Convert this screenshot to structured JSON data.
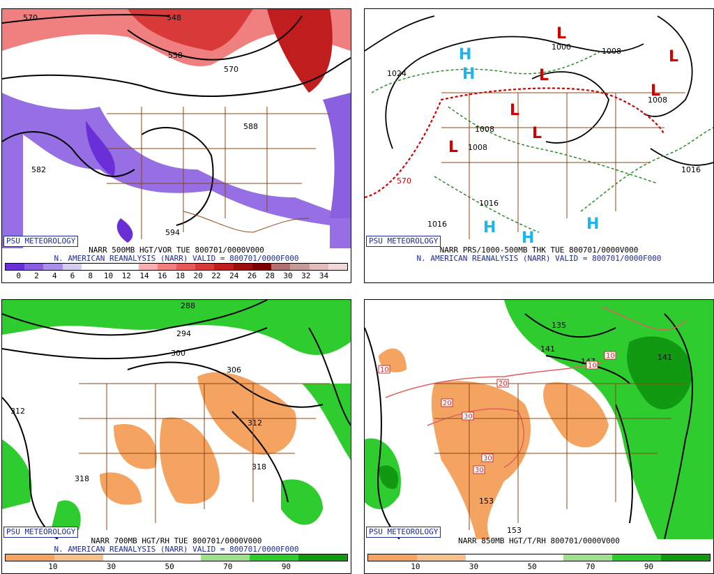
{
  "credit": "PSU METEOROLOGY",
  "panels": [
    {
      "title": "NARR 500MB HGT/VOR TUE 800701/0000V000",
      "subtitle": "N. AMERICAN REANALYSIS (NARR) VALID = 800701/0000F000",
      "legend_ticks": [
        "0",
        "2",
        "4",
        "6",
        "8",
        "10",
        "12",
        "14",
        "16",
        "18",
        "20",
        "22",
        "24",
        "26",
        "28",
        "30",
        "32",
        "34"
      ],
      "legend_colors": [
        "#6a2fd6",
        "#8a5fe0",
        "#a890e8",
        "#d6ccf2",
        "#ffffff",
        "#ffffff",
        "#ffffff",
        "#f6b0b0",
        "#f08080",
        "#e85a5a",
        "#d83a3a",
        "#c01e1e",
        "#9e0e0e",
        "#7c0000",
        "#b07070",
        "#c79a9a",
        "#e0bcbc",
        "#f2d8d8"
      ],
      "contours": [
        "570",
        "548",
        "558",
        "570",
        "582",
        "588",
        "594"
      ]
    },
    {
      "title": "NARR PRS/1000-500MB THK TUE 800701/0000V000",
      "subtitle": "N. AMERICAN REANALYSIS (NARR) VALID = 800701/0000F000",
      "contours": [
        "1024",
        "1016",
        "1008",
        "1000",
        "1008",
        "1008",
        "1016",
        "1016",
        "1008",
        "570"
      ],
      "H": "H",
      "L": "L"
    },
    {
      "title": "NARR 700MB HGT/RH TUE 800701/0000V000",
      "subtitle": "N. AMERICAN REANALYSIS (NARR) VALID = 800701/0000F000",
      "legend_ticks": [
        "10",
        "30",
        "50",
        "70",
        "90"
      ],
      "contours": [
        "288",
        "294",
        "300",
        "306",
        "312",
        "312",
        "318",
        "318"
      ]
    },
    {
      "title": "NARR 850MB HGT/T/RH 800701/0000V000",
      "legend_ticks": [
        "10",
        "30",
        "50",
        "70",
        "90"
      ],
      "contours": [
        "135",
        "141",
        "147",
        "141",
        "153",
        "153"
      ],
      "temps": [
        "10",
        "20",
        "20",
        "30",
        "30",
        "30",
        "10",
        "10"
      ]
    }
  ],
  "rh_colors": [
    "#f4a460",
    "#f7c08e",
    "#ffffff",
    "#ffffff",
    "#9fe08f",
    "#2ecc2e",
    "#119a11"
  ]
}
